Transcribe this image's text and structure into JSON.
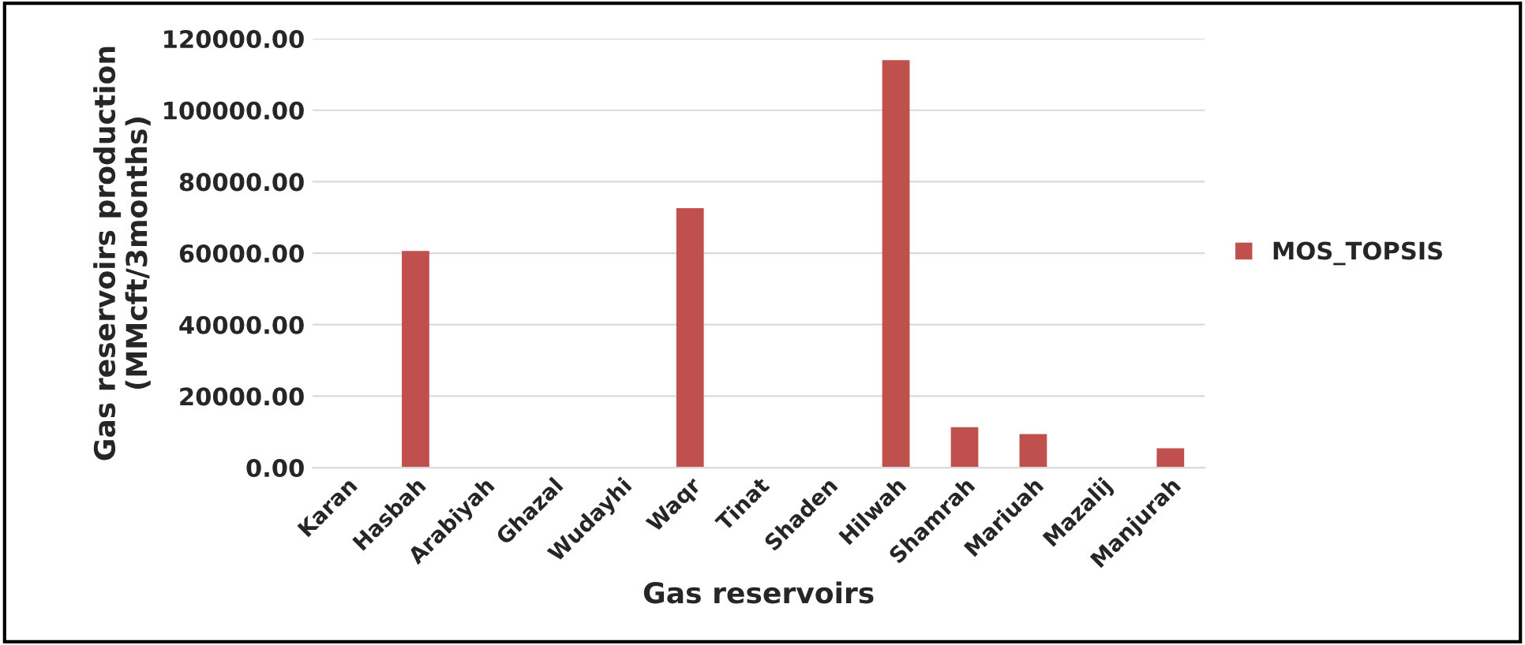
{
  "chart_data": {
    "type": "bar",
    "xlabel": "Gas reservoirs",
    "ylabel": "Gas reservoirs production\n(MMcft/3months)",
    "categories": [
      "Karan",
      "Hasbah",
      "Arabiyah",
      "Ghazal",
      "Wudayhi",
      "Waqr",
      "Tinat",
      "Shaden",
      "Hilwah",
      "Shamrah",
      "Mariuah",
      "Mazalij",
      "Manjurah"
    ],
    "series": [
      {
        "name": "MOS_TOPSIS",
        "color": "#c0504d",
        "values": [
          0,
          60600,
          0,
          0,
          0,
          72600,
          0,
          0,
          114000,
          11300,
          9400,
          0,
          5400
        ]
      }
    ],
    "ylim": [
      0,
      120000
    ],
    "yticks": [
      {
        "value": 0,
        "label": "0.00"
      },
      {
        "value": 20000,
        "label": "20000.00"
      },
      {
        "value": 40000,
        "label": "40000.00"
      },
      {
        "value": 60000,
        "label": "60000.00"
      },
      {
        "value": 80000,
        "label": "80000.00"
      },
      {
        "value": 100000,
        "label": "100000.00"
      },
      {
        "value": 120000,
        "label": "120000.00"
      }
    ],
    "grid": "y",
    "legend": "right"
  }
}
